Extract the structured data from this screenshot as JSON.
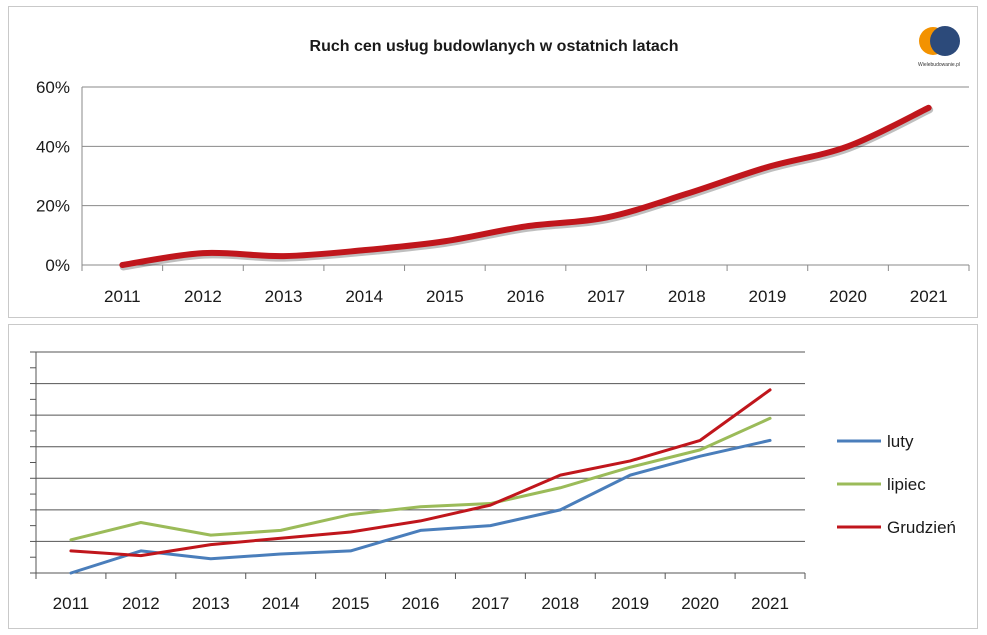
{
  "chart_data": [
    {
      "type": "line",
      "title": "Ruch cen usług budowlanych w ostatnich latach",
      "x": [
        "2011",
        "2012",
        "2013",
        "2014",
        "2015",
        "2016",
        "2017",
        "2018",
        "2019",
        "2020",
        "2021"
      ],
      "yticks": [
        "0%",
        "20%",
        "40%",
        "60%"
      ],
      "ylim": [
        0,
        60
      ],
      "grid": true,
      "series": [
        {
          "values": [
            0,
            4,
            3,
            5,
            8,
            13,
            16,
            24,
            33,
            40,
            53
          ],
          "color": "#c0161c"
        }
      ],
      "logo": {
        "text": "Wielebudowanie.pl",
        "colors": [
          "#f39200",
          "#2c4a7a"
        ]
      }
    },
    {
      "type": "line",
      "x": [
        "2011",
        "2012",
        "2013",
        "2014",
        "2015",
        "2016",
        "2017",
        "2018",
        "2019",
        "2020",
        "2021"
      ],
      "ylim": [
        0,
        7
      ],
      "grid": true,
      "legend_position": "right",
      "series": [
        {
          "name": "luty",
          "color": "#4a7ebb",
          "values": [
            0,
            0.7,
            0.45,
            0.6,
            0.7,
            1.35,
            1.5,
            2.0,
            3.1,
            3.7,
            4.2
          ]
        },
        {
          "name": "lipiec",
          "color": "#9bbb59",
          "values": [
            1.05,
            1.6,
            1.2,
            1.35,
            1.85,
            2.1,
            2.2,
            2.7,
            3.35,
            3.9,
            4.9
          ]
        },
        {
          "name": "Grudzień",
          "color": "#c0161c",
          "values": [
            0.7,
            0.55,
            0.9,
            1.1,
            1.3,
            1.65,
            2.15,
            3.1,
            3.55,
            4.2,
            5.8
          ]
        }
      ]
    }
  ]
}
